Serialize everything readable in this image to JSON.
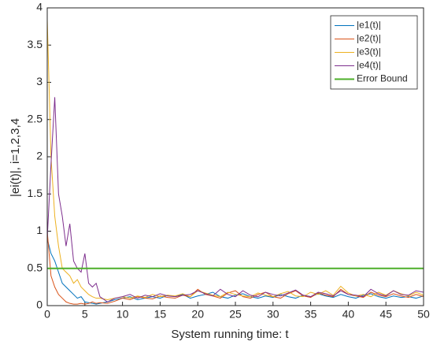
{
  "chart_data": {
    "type": "line",
    "xlabel": "System running time:  t",
    "ylabel": "|ei(t)|, i=1,2,3,4",
    "x": [
      0,
      0.5,
      1,
      1.5,
      2,
      2.5,
      3,
      3.5,
      4,
      4.5,
      5,
      5.5,
      6,
      6.5,
      7,
      8,
      9,
      10,
      11,
      12,
      13,
      14,
      15,
      16,
      17,
      18,
      19,
      20,
      21,
      22,
      23,
      24,
      25,
      26,
      27,
      28,
      29,
      30,
      31,
      32,
      33,
      34,
      35,
      36,
      37,
      38,
      39,
      40,
      41,
      42,
      43,
      44,
      45,
      46,
      47,
      48,
      49,
      50
    ],
    "series": [
      {
        "name": "|e1(t)|",
        "color": "#0072bd",
        "values": [
          0.9,
          0.7,
          0.6,
          0.45,
          0.3,
          0.25,
          0.2,
          0.15,
          0.1,
          0.12,
          0.05,
          0.04,
          0.03,
          0.02,
          0.03,
          0.05,
          0.08,
          0.1,
          0.12,
          0.08,
          0.1,
          0.12,
          0.1,
          0.14,
          0.12,
          0.15,
          0.1,
          0.13,
          0.15,
          0.18,
          0.12,
          0.1,
          0.14,
          0.16,
          0.12,
          0.1,
          0.13,
          0.11,
          0.15,
          0.12,
          0.1,
          0.14,
          0.12,
          0.16,
          0.13,
          0.11,
          0.15,
          0.12,
          0.1,
          0.14,
          0.16,
          0.12,
          0.1,
          0.13,
          0.11,
          0.12,
          0.1,
          0.13
        ]
      },
      {
        "name": "|e2(t)|",
        "color": "#d95319",
        "values": [
          1.0,
          0.4,
          0.25,
          0.15,
          0.1,
          0.05,
          0.03,
          0.02,
          0.02,
          0.03,
          0.02,
          0.03,
          0.05,
          0.03,
          0.04,
          0.03,
          0.06,
          0.1,
          0.08,
          0.12,
          0.1,
          0.09,
          0.13,
          0.11,
          0.1,
          0.14,
          0.12,
          0.22,
          0.15,
          0.13,
          0.1,
          0.17,
          0.2,
          0.12,
          0.1,
          0.15,
          0.18,
          0.12,
          0.1,
          0.16,
          0.2,
          0.13,
          0.11,
          0.17,
          0.14,
          0.12,
          0.22,
          0.15,
          0.13,
          0.11,
          0.18,
          0.14,
          0.12,
          0.16,
          0.13,
          0.11,
          0.15,
          0.12
        ]
      },
      {
        "name": "|e3(t)|",
        "color": "#edb120",
        "values": [
          3.85,
          2.0,
          1.2,
          0.8,
          0.5,
          0.45,
          0.4,
          0.3,
          0.35,
          0.25,
          0.2,
          0.15,
          0.12,
          0.1,
          0.1,
          0.08,
          0.1,
          0.12,
          0.1,
          0.13,
          0.11,
          0.15,
          0.12,
          0.14,
          0.13,
          0.16,
          0.12,
          0.2,
          0.17,
          0.14,
          0.12,
          0.18,
          0.15,
          0.13,
          0.12,
          0.17,
          0.14,
          0.12,
          0.16,
          0.19,
          0.13,
          0.12,
          0.18,
          0.15,
          0.2,
          0.14,
          0.26,
          0.17,
          0.13,
          0.15,
          0.12,
          0.18,
          0.14,
          0.2,
          0.16,
          0.13,
          0.18,
          0.14
        ]
      },
      {
        "name": "|e4(t)|",
        "color": "#7e2f8e",
        "values": [
          0.9,
          1.9,
          2.8,
          1.5,
          1.2,
          0.8,
          1.1,
          0.6,
          0.5,
          0.45,
          0.7,
          0.3,
          0.25,
          0.3,
          0.12,
          0.05,
          0.1,
          0.12,
          0.15,
          0.1,
          0.14,
          0.12,
          0.16,
          0.13,
          0.12,
          0.14,
          0.15,
          0.2,
          0.16,
          0.13,
          0.22,
          0.15,
          0.12,
          0.2,
          0.14,
          0.12,
          0.18,
          0.15,
          0.13,
          0.17,
          0.21,
          0.14,
          0.12,
          0.18,
          0.16,
          0.13,
          0.2,
          0.15,
          0.14,
          0.12,
          0.22,
          0.16,
          0.13,
          0.2,
          0.15,
          0.14,
          0.2,
          0.18
        ]
      },
      {
        "name": "Error Bound",
        "color": "#4daf2a",
        "width": 2,
        "values": [
          0.5,
          0.5,
          0.5,
          0.5,
          0.5,
          0.5,
          0.5,
          0.5,
          0.5,
          0.5,
          0.5,
          0.5,
          0.5,
          0.5,
          0.5,
          0.5,
          0.5,
          0.5,
          0.5,
          0.5,
          0.5,
          0.5,
          0.5,
          0.5,
          0.5,
          0.5,
          0.5,
          0.5,
          0.5,
          0.5,
          0.5,
          0.5,
          0.5,
          0.5,
          0.5,
          0.5,
          0.5,
          0.5,
          0.5,
          0.5,
          0.5,
          0.5,
          0.5,
          0.5,
          0.5,
          0.5,
          0.5,
          0.5,
          0.5,
          0.5,
          0.5,
          0.5,
          0.5,
          0.5,
          0.5,
          0.5,
          0.5,
          0.5
        ]
      }
    ],
    "xlim": [
      0,
      50
    ],
    "xticks": [
      0,
      5,
      10,
      15,
      20,
      25,
      30,
      35,
      40,
      45,
      50
    ],
    "ylim": [
      0,
      4
    ],
    "yticks": [
      0,
      0.5,
      1,
      1.5,
      2,
      2.5,
      3,
      3.5,
      4
    ],
    "legend": "upper right"
  }
}
